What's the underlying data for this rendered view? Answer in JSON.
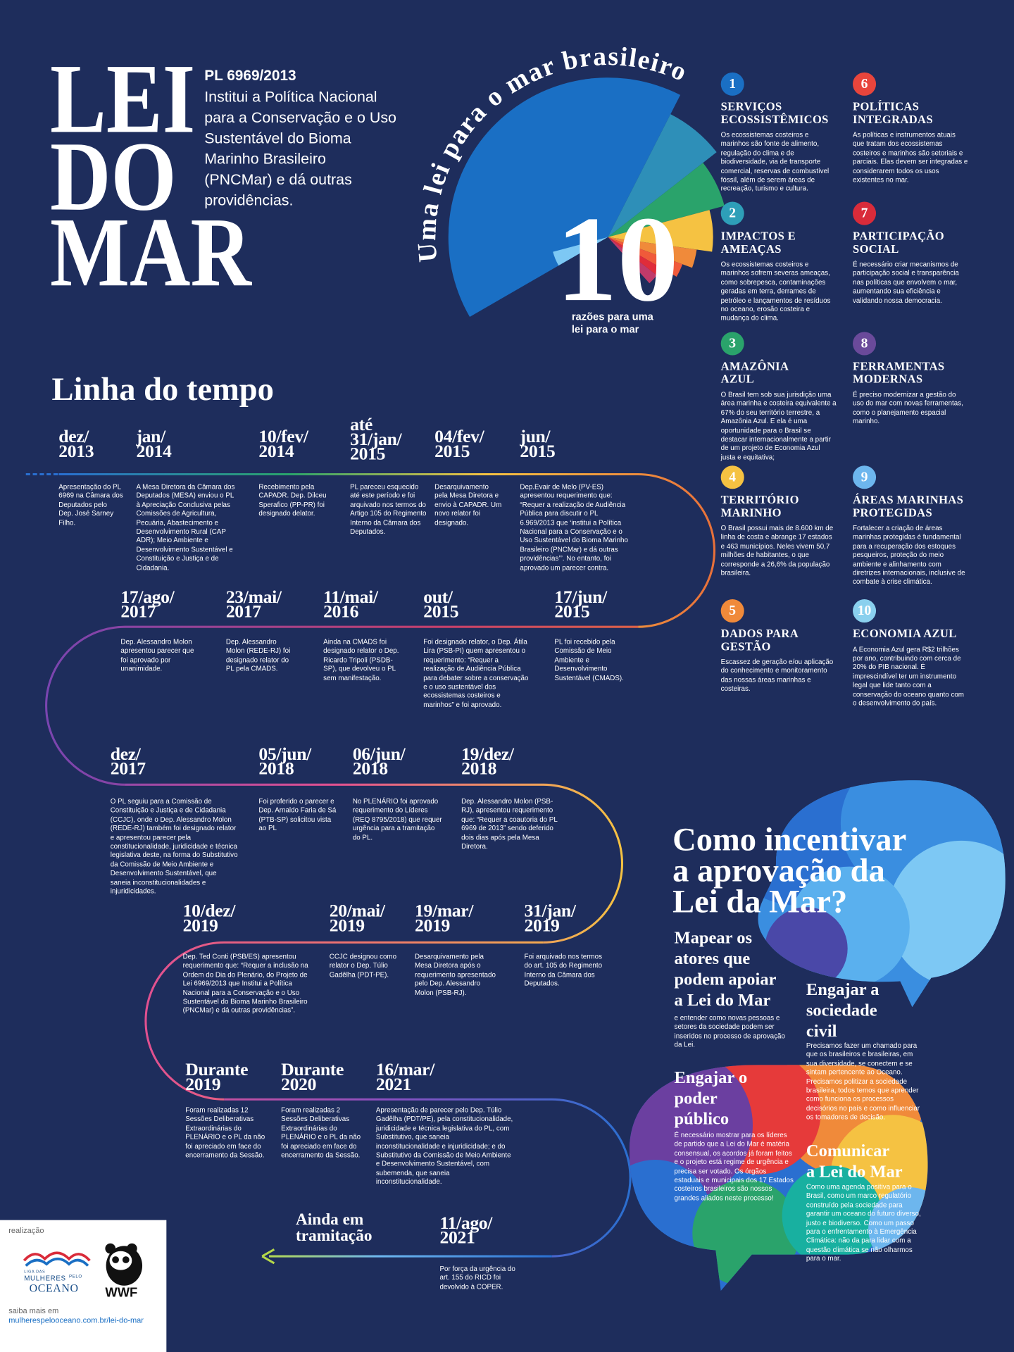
{
  "header": {
    "title": [
      "LEI",
      "DO",
      "MAR"
    ],
    "pl": "PL 6969/2013",
    "description": "Institui a Política Nacional\npara a Conservação e o Uso\nSustentável do Bioma\nMarinho Brasileiro\n(PNCMar) e dá outras\nprovidências."
  },
  "fan": {
    "arc_title": "Uma lei para o mar brasileiro",
    "number": "10",
    "caption": "razões para uma\nlei para o mar"
  },
  "reasons": [
    {
      "number": 1,
      "color": "#1a6fc4",
      "title": "SERVIÇOS\nECOSSISTÊMICOS",
      "text": "Os ecossistemas costeiros e marinhos são fonte de alimento, regulação do clima e de biodiversidade, via de transporte comercial, reservas de combustível fóssil, além de serem áreas de recreação, turismo e cultura."
    },
    {
      "number": 2,
      "color": "#2e9fb8",
      "title": "IMPACTOS E\nAMEAÇAS",
      "text": "Os ecossistemas costeiros e marinhos sofrem severas ameaças, como sobrepesca, contaminações geradas em terra, derrames de petróleo e lançamentos de resíduos no oceano, erosão costeira e mudança do clima."
    },
    {
      "number": 3,
      "color": "#2aa36b",
      "title": "AMAZÔNIA\nAZUL",
      "text": "O Brasil tem sob sua jurisdição uma área marinha e costeira equivalente a 67% do seu território terrestre, a Amazônia Azul. E ela é uma oportunidade para o Brasil se destacar internacionalmente a partir de um projeto de Economia Azul justa e equitativa;"
    },
    {
      "number": 4,
      "color": "#f5c242",
      "title": "TERRITÓRIO\nMARINHO",
      "text": "O Brasil possui mais de 8.600 km de linha de costa e abrange 17 estados e 463 municípios. Neles vivem 50,7 milhões de habitantes, o que corresponde a 26,6% da população brasileira."
    },
    {
      "number": 5,
      "color": "#f08a3a",
      "title": "DADOS PARA\nGESTÃO",
      "text": "Escassez de geração e/ou aplicação do conhecimento e monitoramento das nossas áreas marinhas e costeiras."
    },
    {
      "number": 6,
      "color": "#e8453c",
      "title": "POLÍTICAS\nINTEGRADAS",
      "text": "As políticas e instrumentos atuais que tratam dos ecossistemas costeiros e marinhos são setoriais e parciais. Elas devem ser integradas e considerarem todos os usos existentes no mar."
    },
    {
      "number": 7,
      "color": "#d92b3a",
      "title": "PARTICIPAÇÃO\nSOCIAL",
      "text": "É necessário criar mecanismos de participação social e transparência nas políticas que envolvem o mar, aumentando sua eficiência e validando nossa democracia."
    },
    {
      "number": 8,
      "color": "#6a4a9a",
      "title": "FERRAMENTAS\nMODERNAS",
      "text": "É preciso modernizar a gestão do uso do mar com novas ferramentas, como o planejamento espacial marinho."
    },
    {
      "number": 9,
      "color": "#6db6ee",
      "title": "ÁREAS MARINHAS\nPROTEGIDAS",
      "text": "Fortalecer a criação de áreas marinhas protegidas é fundamental para a recuperação dos estoques pesqueiros, proteção do meio ambiente e alinhamento com diretrizes internacionais, inclusive de combate à crise climática."
    },
    {
      "number": 10,
      "color": "#8ad0ee",
      "title": "ECONOMIA AZUL",
      "text": "A Economia Azul gera R$2 trilhões por ano, contribuindo com cerca de 20% do PIB nacional.  É imprescindível ter um instrumento legal que lide tanto com a conservação do oceano quanto com o desenvolvimento do país."
    }
  ],
  "timeline": {
    "title": "Linha do tempo",
    "events": [
      {
        "date": "dez/\n2013",
        "text": "Apresentação do PL 6969 na Câmara dos Deputados pelo Dep. José Sarney Filho."
      },
      {
        "date": "jan/\n2014",
        "text": "A Mesa Diretora da Câmara dos Deputados (MESA) enviou o PL à Apreciação Conclusiva pelas Comissões de Agricultura, Pecuária, Abastecimento e Desenvolvimento Rural (CAP ADR); Meio Ambiente e Desenvolvimento Sustentável e Constituição e Justiça e de Cidadania."
      },
      {
        "date": "10/fev/\n2014",
        "text": "Recebimento pela CAPADR. Dep. Dilceu Sperafico (PP-PR) foi designado delator."
      },
      {
        "date": "até\n31/jan/\n2015",
        "text": "PL pareceu esquecido até este período e foi arquivado nos termos do Artigo 105 do Regimento Interno da Câmara dos Deputados."
      },
      {
        "date": "04/fev/\n2015",
        "text": "Desarquivamento pela Mesa Diretora e envio à CAPADR. Um novo relator foi designado."
      },
      {
        "date": "jun/\n2015",
        "text": "Dep.Evair de Melo (PV-ES) apresentou requerimento que: “Requer a realização de Audiência Pública para discutir o PL 6.969/2013 que ‘institui a Política Nacional para a Conservação e o Uso Sustentável do Bioma Marinho Brasileiro (PNCMar) e dá outras providências’”. No entanto, foi aprovado um parecer contra."
      },
      {
        "date": "17/jun/\n2015",
        "text": "PL foi recebido pela Comissão de Meio Ambiente e Desenvolvimento Sustentável (CMADS)."
      },
      {
        "date": "out/\n2015",
        "text": "Foi designado relator, o Dep. Átila Lira (PSB-PI) quem apresentou o requerimento: “Requer a realização de Audiência Pública para debater sobre a conservação e o uso sustentável dos ecossistemas costeiros e marinhos” e foi aprovado."
      },
      {
        "date": "11/mai/\n2016",
        "text": "Ainda na CMADS foi designado relator o Dep. Ricardo Tripoli (PSDB-SP), que devolveu o PL sem manifestação."
      },
      {
        "date": "23/mai/\n2017",
        "text": "Dep. Alessandro Molon (REDE-RJ) foi designado relator do PL pela CMADS."
      },
      {
        "date": "17/ago/\n2017",
        "text": "Dep. Alessandro Molon apresentou parecer que foi aprovado por unanimidade."
      },
      {
        "date": "dez/\n2017",
        "text": "O PL seguiu para a Comissão de Constituição e Justiça e de Cidadania (CCJC), onde o Dep. Alessandro Molon (REDE-RJ) também foi designado relator e apresentou parecer pela constitucionalidade, juridicidade e técnica legislativa deste, na forma do Substitutivo da Comissão de Meio Ambiente e Desenvolvimento Sustentável, que saneia inconstitucionalidades e injuridicidades."
      },
      {
        "date": "05/jun/\n2018",
        "text": "Foi proferido o parecer e Dep. Arnaldo Faria de Sá (PTB-SP) solicitou vista ao PL"
      },
      {
        "date": "06/jun/\n2018",
        "text": "No PLENÁRIO foi aprovado requerimento do Líderes (REQ 8795/2018) que requer urgência para a tramitação do PL."
      },
      {
        "date": "19/dez/\n2018",
        "text": "Dep. Alessandro Molon (PSB-RJ), apresentou requerimento que: “Requer a coautoria do PL 6969 de 2013” sendo deferido dois dias após pela Mesa Diretora."
      },
      {
        "date": "31/jan/\n2019",
        "text": "Foi arquivado nos termos do art. 105 do Regimento Interno da Câmara dos Deputados."
      },
      {
        "date": "19/mar/\n2019",
        "text": "Desarquivamento pela Mesa Diretora após o requerimento apresentado pelo Dep. Alessandro Molon (PSB-RJ)."
      },
      {
        "date": "20/mai/\n2019",
        "text": "CCJC designou como relator o Dep. Túlio Gadêlha (PDT-PE)."
      },
      {
        "date": "10/dez/\n2019",
        "text": "Dep. Ted Conti (PSB/ES) apresentou requerimento que: “Requer a inclusão na Ordem do Dia do Plenário, do Projeto de Lei 6969/2013 que Institui a Política Nacional para a Conservação e o Uso Sustentável do Bioma Marinho Brasileiro (PNCMar) e dá outras providências”."
      },
      {
        "date": "Durante\n2019",
        "text": "Foram realizadas 12 Sessões Deliberativas Extraordinárias do PLENÁRIO e o PL da não foi apreciado em face do encerramento da Sessão."
      },
      {
        "date": "Durante\n2020",
        "text": "Foram realizadas 2 Sessões Deliberativas Extraordinárias do PLENÁRIO e o PL da não foi apreciado em face do encerramento da Sessão."
      },
      {
        "date": "16/mar/\n2021",
        "text": "Apresentação de parecer  pelo Dep. Túlio Gadêlha (PDT/PE), pela constitucionalidade, juridicidade e técnica legislativa do PL, com Substitutivo, que saneia inconstitucionalidade e injuridicidade; e do Substitutivo da Comissão de Meio Ambiente e Desenvolvimento Sustentável, com subemenda, que saneia inconstitucionalidade."
      },
      {
        "date": "11/ago/\n2021",
        "text": "Por força da urgência do art. 155 do RICD foi devolvido à COPER."
      }
    ],
    "end_label": "Ainda em\ntramitação"
  },
  "cta": {
    "title": "Como incentivar\na aprovação da\nLei da Mar?",
    "items": [
      {
        "title": "Mapear os\natores que\npodem apoiar\na Lei do Mar",
        "text": "e entender como novas pessoas e setores da sociedade podem ser inseridos no processo de aprovação da Lei."
      },
      {
        "title": "Engajar a\nsociedade\ncivil",
        "text": "Precisamos fazer um chamado para que os brasileiros e brasileiras, em sua diversidade, se conectem e se sintam pertencente ao Oceano. Precisamos politizar a sociedade brasileira, todos temos que aprender como funciona os processos decisórios no país e como influenciar os tomadores de decisão."
      },
      {
        "title": "Engajar o\npoder\npúblico",
        "text": "É necessário mostrar para os líderes de partido que a Lei do Mar é matéria consensual, os acordos já foram feitos e o projeto está regime de urgência e precisa ser votado. Os órgãos estaduais e municipais dos 17 Estados costeiros brasileiros são nossos grandes aliados neste processo!"
      },
      {
        "title": "Comunicar\na Lei do Mar",
        "text": "Como uma agenda positiva para o Brasil, como um marco regulatório construído pela sociedade para garantir um oceano do futuro diverso, justo e biodiverso. Como um passo para o enfrentamento à Emergência Climática:  não da para lidar com a questão climática se não olharmos para o mar."
      }
    ]
  },
  "footer": {
    "label": "realização",
    "org1": [
      "LIGA DAS",
      "MULHERES",
      "PELO",
      "OCEANO"
    ],
    "org2": "WWF",
    "more": "saiba mais em",
    "url": "mulherespelooceano.com.br/lei-do-mar"
  }
}
